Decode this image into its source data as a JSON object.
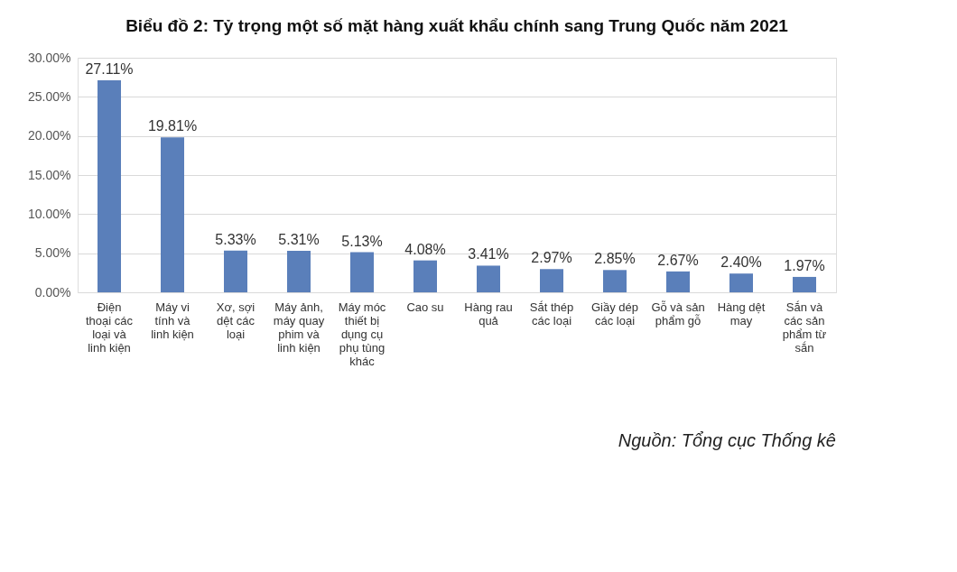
{
  "chart_data": {
    "type": "bar",
    "title": "Biểu đồ 2: Tỷ trọng một số mặt hàng xuất khẩu chính sang Trung Quốc năm 2021",
    "categories": [
      "Điện thoại các loại và linh kiện",
      "Máy vi tính và linh kiện",
      "Xơ, sợi dệt các loại",
      "Máy ảnh, máy quay phim và linh kiện",
      "Máy móc thiết bị dụng cụ phụ tùng khác",
      "Cao su",
      "Hàng rau quả",
      "Sắt thép các loại",
      "Giầy dép các loại",
      "Gỗ và sản phẩm gỗ",
      "Hàng dệt may",
      "Sắn và các sản phẩm từ sắn"
    ],
    "values": [
      27.11,
      19.81,
      5.33,
      5.31,
      5.13,
      4.08,
      3.41,
      2.97,
      2.85,
      2.67,
      2.4,
      1.97
    ],
    "value_labels": [
      "27.11%",
      "19.81%",
      "5.33%",
      "5.31%",
      "5.13%",
      "4.08%",
      "3.41%",
      "2.97%",
      "2.85%",
      "2.67%",
      "2.40%",
      "1.97%"
    ],
    "color": "#5a7fba",
    "ylim": [
      0,
      30
    ],
    "yticks": [
      {
        "value": 0,
        "label": "0.00%"
      },
      {
        "value": 5,
        "label": "5.00%"
      },
      {
        "value": 10,
        "label": "10.00%"
      },
      {
        "value": 15,
        "label": "15.00%"
      },
      {
        "value": 20,
        "label": "20.00%"
      },
      {
        "value": 25,
        "label": "25.00%"
      },
      {
        "value": 30,
        "label": "30.00%"
      }
    ],
    "grid": "y",
    "annotations": [
      "Nguồn: Tổng cục Thống kê"
    ]
  }
}
